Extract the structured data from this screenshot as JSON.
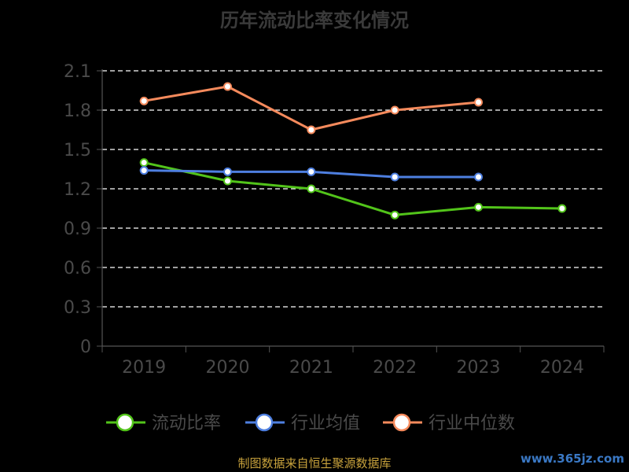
{
  "chart_data": {
    "type": "line",
    "title": "历年流动比率变化情况",
    "categories": [
      "2019",
      "2020",
      "2021",
      "2022",
      "2023",
      "2024"
    ],
    "ylim": [
      0,
      2.1
    ],
    "yticks": [
      "0",
      "0.3",
      "0.6",
      "0.9",
      "1.2",
      "1.5",
      "1.8",
      "2.1"
    ],
    "grid": true,
    "legend_position": "bottom",
    "series": [
      {
        "name": "流动比率",
        "color": "#52c41a",
        "values": [
          1.4,
          1.26,
          1.2,
          1.0,
          1.06,
          1.05
        ]
      },
      {
        "name": "行业均值",
        "color": "#4e7fe0",
        "values": [
          1.34,
          1.33,
          1.33,
          1.29,
          1.29,
          null
        ]
      },
      {
        "name": "行业中位数",
        "color": "#f58a5c",
        "values": [
          1.87,
          1.98,
          1.65,
          1.8,
          1.86,
          null
        ]
      }
    ]
  },
  "footer": {
    "source": "制图数据来自恒生聚源数据库",
    "watermark": "www.365jz.com"
  }
}
